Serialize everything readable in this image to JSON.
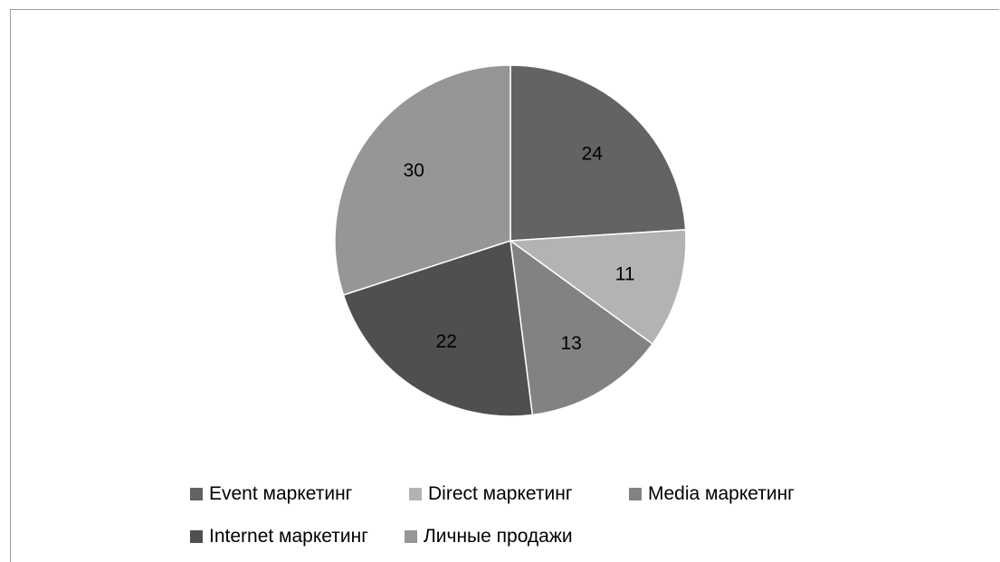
{
  "chart_data": {
    "type": "pie",
    "title": "",
    "categories": [
      "Event маркетинг",
      "Direct маркетинг",
      "Media маркетинг",
      "Internet маркетинг",
      "Личные продажи"
    ],
    "values": [
      24,
      11,
      13,
      22,
      30
    ],
    "colors": [
      "#636363",
      "#b3b3b3",
      "#828282",
      "#4f4f4f",
      "#969696"
    ],
    "data_labels": [
      "24",
      "11",
      "13",
      "22",
      "30"
    ],
    "legend_position": "bottom"
  }
}
